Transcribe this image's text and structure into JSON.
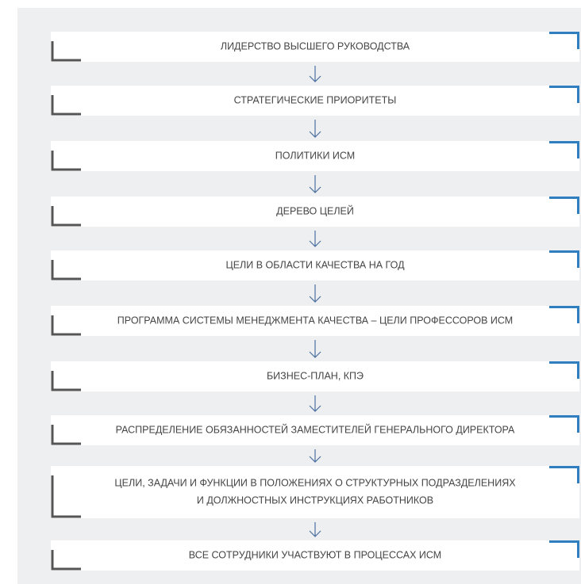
{
  "nodes": [
    {
      "lines": [
        "ЛИДЕРСТВО ВЫСШЕГО РУКОВОДСТВА"
      ]
    },
    {
      "lines": [
        "СТРАТЕГИЧЕСКИЕ ПРИОРИТЕТЫ"
      ]
    },
    {
      "lines": [
        "ПОЛИТИКИ ИСМ"
      ]
    },
    {
      "lines": [
        "ДЕРЕВО ЦЕЛЕЙ"
      ]
    },
    {
      "lines": [
        "ЦЕЛИ В ОБЛАСТИ КАЧЕСТВА НА ГОД"
      ]
    },
    {
      "lines": [
        "ПРОГРАММА СИСТЕМЫ МЕНЕДЖМЕНТА КАЧЕСТВА – ЦЕЛИ ПРОФЕССОРОВ ИСМ"
      ]
    },
    {
      "lines": [
        "БИЗНЕС-ПЛАН, КПЭ"
      ]
    },
    {
      "lines": [
        "РАСПРЕДЕЛЕНИЕ ОБЯЗАННОСТЕЙ ЗАМЕСТИТЕЛЕЙ ГЕНЕРАЛЬНОГО ДИРЕКТОРА"
      ]
    },
    {
      "lines": [
        "ЦЕЛИ, ЗАДАЧИ И ФУНКЦИИ В ПОЛОЖЕНИЯХ О СТРУКТУРНЫХ ПОДРАЗДЕЛЕНИЯХ",
        "И ДОЛЖНОСТНЫХ ИНСТРУКЦИЯХ РАБОТНИКОВ"
      ]
    },
    {
      "lines": [
        "ВСЕ СОТРУДНИКИ УЧАСТВУЮТ В ПРОЦЕССАХ ИСМ"
      ]
    }
  ]
}
